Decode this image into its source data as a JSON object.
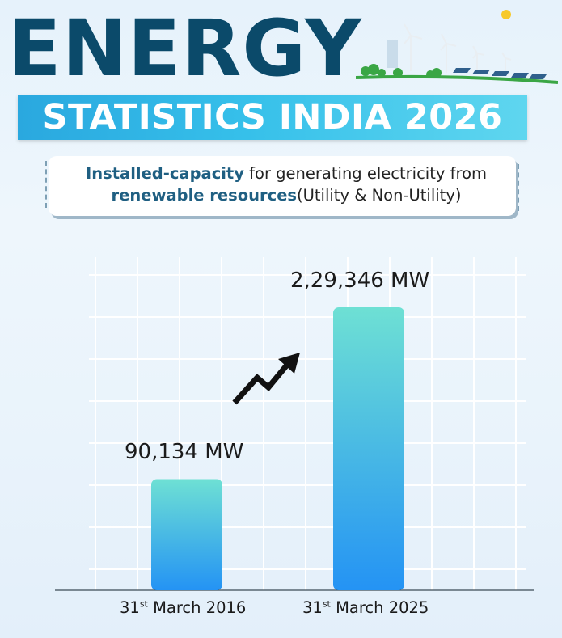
{
  "header": {
    "title": "ENERGY",
    "banner": "STATISTICS INDIA 2026"
  },
  "subtitle": {
    "part1": "Installed-capacity",
    "part2": " for generating electricity from",
    "part3": "renewable resources",
    "part4": "(Utility & Non-Utility)"
  },
  "colors": {
    "title": "#0b4a6a",
    "bar_top": "#6ee0d4",
    "bar_bottom": "#2493f4",
    "ribbon": "#36c0ea"
  },
  "chart_data": {
    "type": "bar",
    "title": "Installed-capacity for generating electricity from renewable resources (Utility & Non-Utility)",
    "categories": [
      {
        "day": "31",
        "suffix": "st",
        "rest": " March 2016"
      },
      {
        "day": "31",
        "suffix": "st",
        "rest": " March 2025"
      }
    ],
    "values": [
      90134,
      229346
    ],
    "value_labels": [
      "90,134 MW",
      "2,29,346 MW"
    ],
    "unit": "MW",
    "ylim": [
      0,
      250000
    ],
    "grid": true,
    "trend_icon": "rising-arrow-icon"
  }
}
